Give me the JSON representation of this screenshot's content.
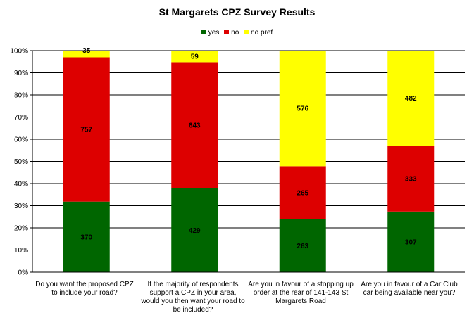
{
  "chart_data": {
    "type": "bar",
    "stacked": "percent",
    "title": "St Margarets CPZ Survey Results",
    "categories": [
      "Do you want the proposed CPZ to include your road?",
      "If the majority of respondents support a CPZ in your area, would you then want your road to be included?",
      "Are you in favour of a stopping up order at the rear of 141-143 St Margarets Road",
      "Are you in favour of a Car Club car being available near you?"
    ],
    "series": [
      {
        "name": "yes",
        "color": "#006600",
        "values": [
          370,
          429,
          263,
          307
        ]
      },
      {
        "name": "no",
        "color": "#dd0000",
        "values": [
          757,
          643,
          265,
          333
        ]
      },
      {
        "name": "no pref",
        "color": "#ffff00",
        "values": [
          35,
          59,
          576,
          482
        ]
      }
    ],
    "ylim": [
      0,
      100
    ],
    "yticks": [
      "0%",
      "10%",
      "20%",
      "30%",
      "40%",
      "50%",
      "60%",
      "70%",
      "80%",
      "90%",
      "100%"
    ],
    "grid": true,
    "legend_position": "top"
  }
}
